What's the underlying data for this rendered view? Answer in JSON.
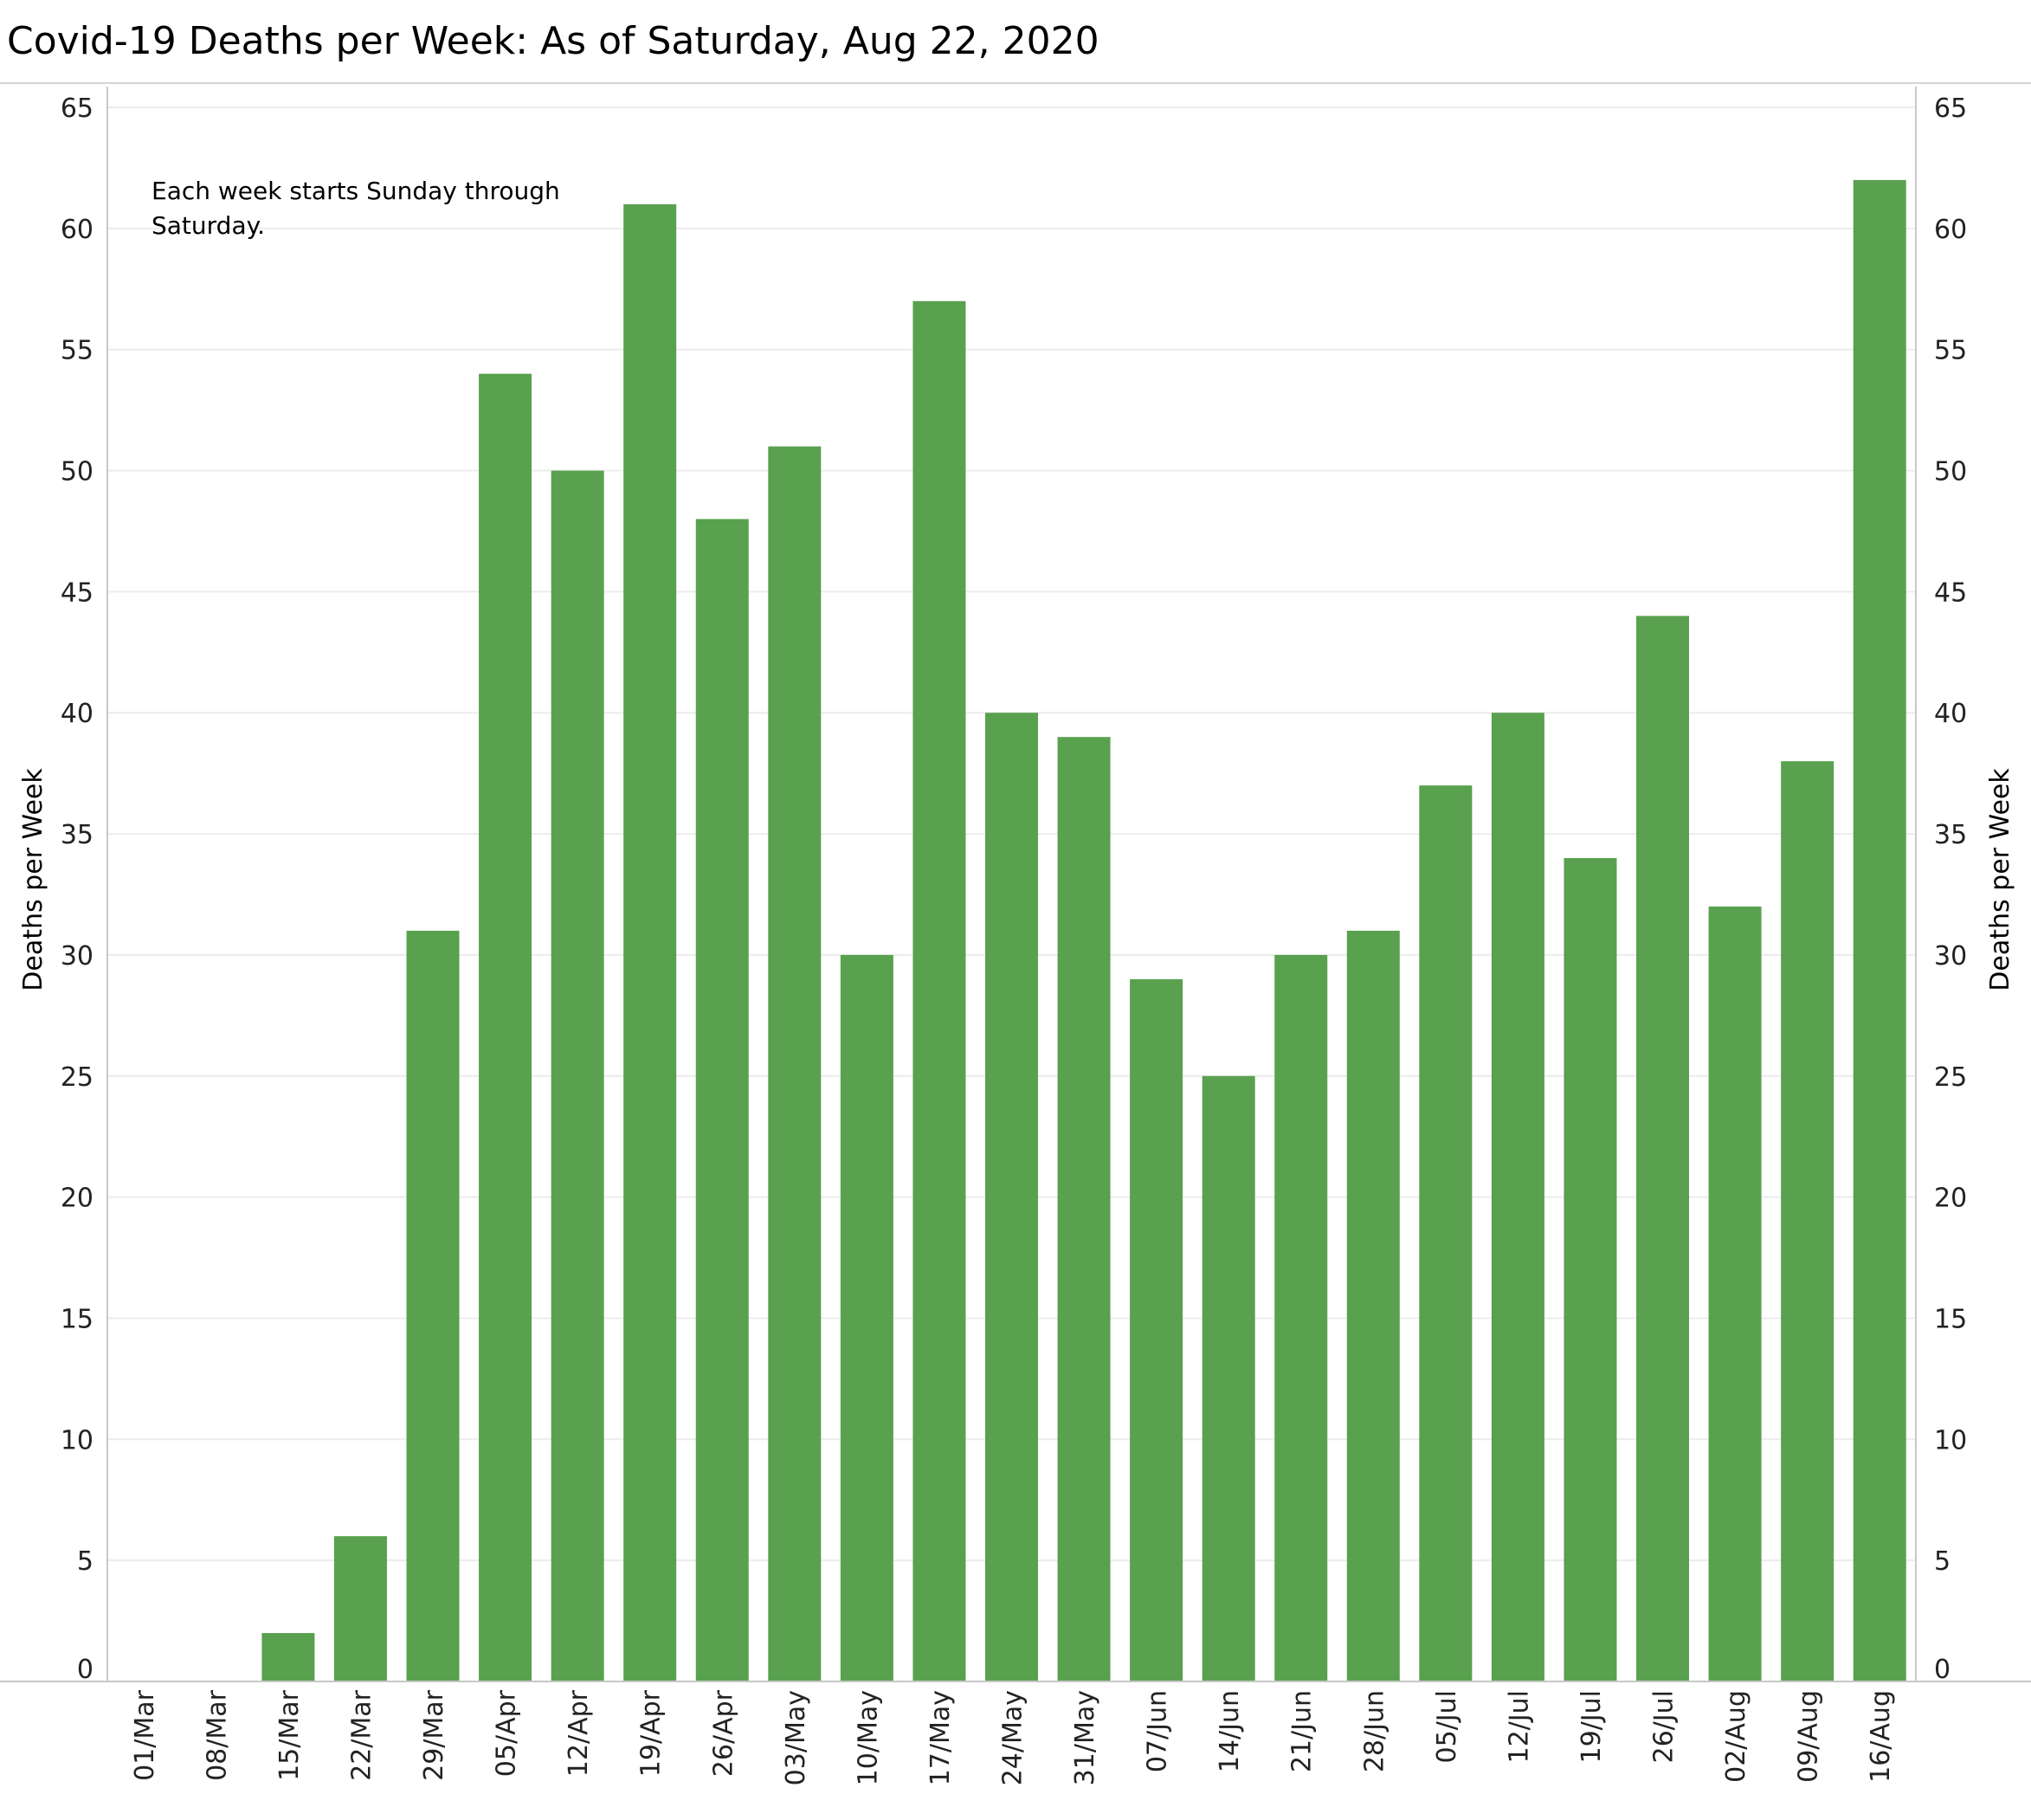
{
  "title": "Covid-19 Deaths per Week:  As of Saturday, Aug 22, 2020",
  "colors": {
    "bar": "#59A14F",
    "grid": "#ececec",
    "axis": "#c8c8c8",
    "text": "#222222"
  },
  "chart_data": {
    "type": "bar",
    "title": "Covid-19 Deaths per Week:  As of Saturday, Aug 22, 2020",
    "annotation": [
      "Each week starts Sunday through",
      "Saturday."
    ],
    "ylabel": "Deaths per Week",
    "ylabel_right": "Deaths per Week",
    "xlabel": "",
    "ylim": [
      0,
      65
    ],
    "yticks": [
      0,
      5,
      10,
      15,
      20,
      25,
      30,
      35,
      40,
      45,
      50,
      55,
      60,
      65
    ],
    "grid": true,
    "legend": "none",
    "categories": [
      "01/Mar",
      "08/Mar",
      "15/Mar",
      "22/Mar",
      "29/Mar",
      "05/Apr",
      "12/Apr",
      "19/Apr",
      "26/Apr",
      "03/May",
      "10/May",
      "17/May",
      "24/May",
      "31/May",
      "07/Jun",
      "14/Jun",
      "21/Jun",
      "28/Jun",
      "05/Jul",
      "12/Jul",
      "19/Jul",
      "26/Jul",
      "02/Aug",
      "09/Aug",
      "16/Aug"
    ],
    "values": [
      0,
      0,
      2,
      6,
      31,
      54,
      50,
      61,
      48,
      51,
      30,
      57,
      40,
      39,
      29,
      25,
      30,
      31,
      37,
      40,
      34,
      44,
      32,
      38,
      62
    ]
  }
}
